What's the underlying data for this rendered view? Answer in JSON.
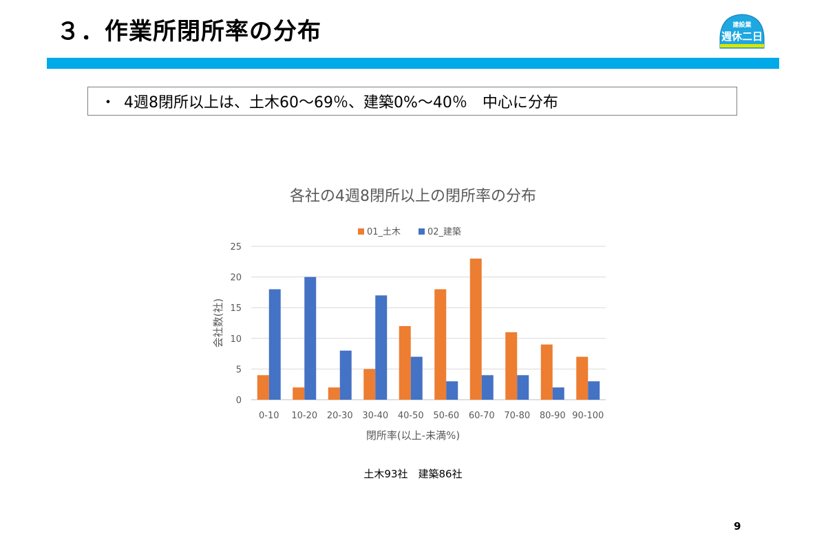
{
  "slide": {
    "title": "３．作業所閉所率の分布",
    "summary_bullet": "・",
    "summary": "4週8閉所以上は、土木60～69％、建築0%～40％　中心に分布",
    "footnote": "土木93社　建築86社",
    "page_number": "9"
  },
  "logo": {
    "line1": "建設業",
    "line2": "週休二日",
    "colors": {
      "helmet": "#1ea7e1",
      "band": "#d8e600",
      "text": "#ffffff"
    }
  },
  "colors": {
    "accent_bar": "#00a9e8",
    "civil": "#ed7d31",
    "building": "#4472c4"
  },
  "chart_data": {
    "type": "bar",
    "title": "各社の4週8閉所以上の閉所率の分布",
    "xlabel": "閉所率(以上-未満%)",
    "ylabel": "会社数(社)",
    "ylim": [
      0,
      25
    ],
    "yticks": [
      "0",
      "5",
      "10",
      "15",
      "20",
      "25"
    ],
    "grid": true,
    "legend_position": "top",
    "categories": [
      "0-10",
      "10-20",
      "20-30",
      "30-40",
      "40-50",
      "50-60",
      "60-70",
      "70-80",
      "80-90",
      "90-100"
    ],
    "series": [
      {
        "name": "01_土木",
        "color": "#ed7d31",
        "values": [
          4,
          2,
          2,
          5,
          12,
          18,
          23,
          11,
          9,
          7
        ]
      },
      {
        "name": "02_建築",
        "color": "#4472c4",
        "values": [
          18,
          20,
          8,
          17,
          7,
          3,
          4,
          4,
          2,
          3
        ]
      }
    ]
  }
}
